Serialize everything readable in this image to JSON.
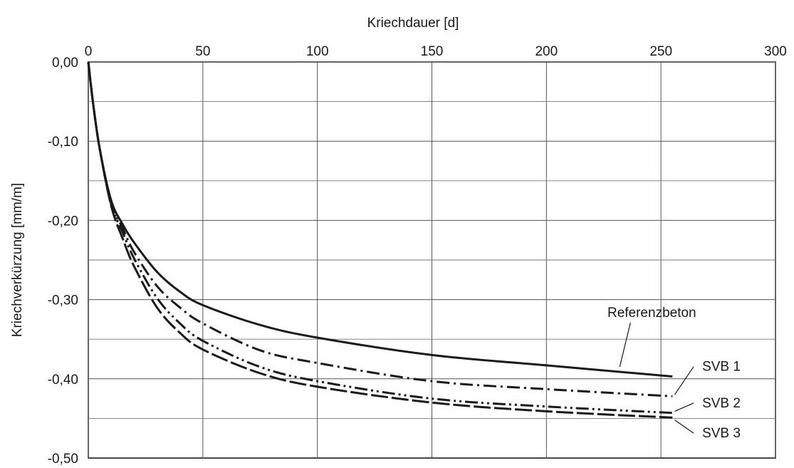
{
  "chart_data": {
    "type": "line",
    "title": "",
    "xlabel": "Kriechdauer [d]",
    "ylabel": "Kriechverkürzung [mm/m]",
    "xlim": [
      0,
      300
    ],
    "ylim": [
      -0.5,
      0.0
    ],
    "x_ticks": [
      0,
      50,
      100,
      150,
      200,
      250,
      300
    ],
    "x_tick_labels": [
      "0",
      "50",
      "100",
      "150",
      "200",
      "250",
      "300"
    ],
    "y_ticks": [
      0.0,
      -0.1,
      -0.2,
      -0.3,
      -0.4,
      -0.5
    ],
    "y_tick_labels": [
      "0,00",
      "-0,10",
      "-0,20",
      "-0,30",
      "-0,40",
      "-0,50"
    ],
    "x_axis_position": "top",
    "grid": true,
    "legend": "none",
    "series": [
      {
        "name": "Referenzbeton",
        "line_style": "solid",
        "x": [
          0,
          2,
          5,
          10,
          15,
          20,
          30,
          40,
          50,
          75,
          100,
          150,
          200,
          255
        ],
        "y": [
          0.0,
          -0.05,
          -0.11,
          -0.175,
          -0.205,
          -0.228,
          -0.265,
          -0.29,
          -0.307,
          -0.332,
          -0.348,
          -0.37,
          -0.383,
          -0.397
        ]
      },
      {
        "name": "SVB 1",
        "line_style": "dash-dot",
        "x": [
          0,
          2,
          5,
          10,
          15,
          20,
          30,
          40,
          50,
          75,
          100,
          150,
          200,
          255
        ],
        "y": [
          0.0,
          -0.05,
          -0.11,
          -0.178,
          -0.21,
          -0.24,
          -0.283,
          -0.31,
          -0.33,
          -0.364,
          -0.38,
          -0.403,
          -0.413,
          -0.422
        ]
      },
      {
        "name": "SVB 2",
        "line_style": "dash-dot-dot",
        "x": [
          0,
          2,
          5,
          10,
          15,
          20,
          30,
          40,
          50,
          75,
          100,
          150,
          200,
          255
        ],
        "y": [
          0.0,
          -0.05,
          -0.11,
          -0.18,
          -0.215,
          -0.248,
          -0.298,
          -0.33,
          -0.352,
          -0.385,
          -0.403,
          -0.425,
          -0.435,
          -0.443
        ]
      },
      {
        "name": "SVB 3",
        "line_style": "long-dash",
        "x": [
          0,
          2,
          5,
          10,
          15,
          20,
          30,
          40,
          50,
          75,
          100,
          150,
          200,
          255
        ],
        "y": [
          0.0,
          -0.05,
          -0.11,
          -0.182,
          -0.223,
          -0.258,
          -0.31,
          -0.342,
          -0.363,
          -0.393,
          -0.41,
          -0.43,
          -0.441,
          -0.449
        ]
      }
    ],
    "annotations": [
      {
        "text": "Referenzbeton",
        "series": "Referenzbeton",
        "x": 246,
        "y": -0.322,
        "target_x": 232,
        "target_y": -0.385
      },
      {
        "text": "SVB 1",
        "series": "SVB 1",
        "x": 268,
        "y": -0.39,
        "target_x": 256,
        "target_y": -0.42
      },
      {
        "text": "SVB 2",
        "series": "SVB 2",
        "x": 268,
        "y": -0.436,
        "target_x": 256,
        "target_y": -0.441
      },
      {
        "text": "SVB 3",
        "series": "SVB 3",
        "x": 268,
        "y": -0.474,
        "target_x": 256,
        "target_y": -0.452
      }
    ]
  }
}
